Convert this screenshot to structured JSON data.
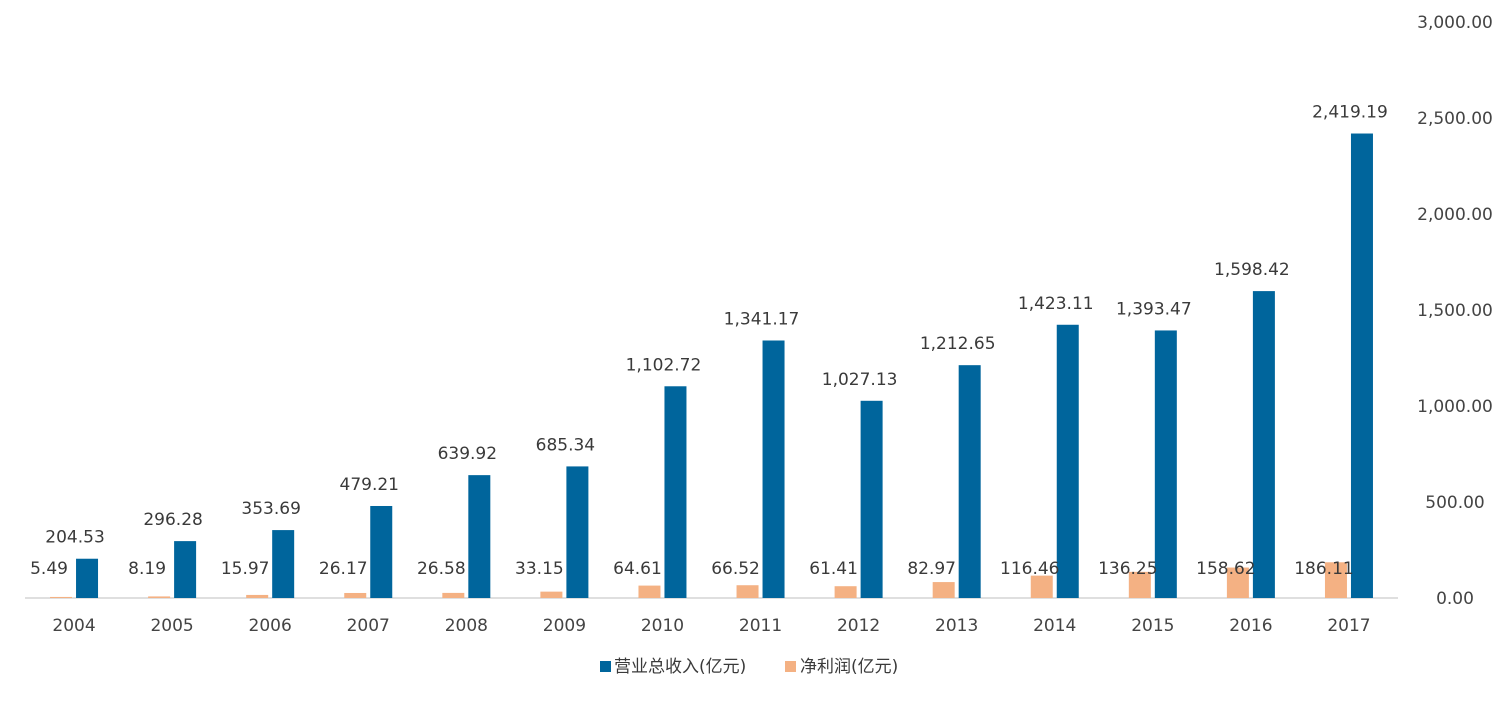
{
  "chart_data": {
    "type": "bar",
    "categories": [
      "2004",
      "2005",
      "2006",
      "2007",
      "2008",
      "2009",
      "2010",
      "2011",
      "2012",
      "2013",
      "2014",
      "2015",
      "2016",
      "2017"
    ],
    "series": [
      {
        "name": "营业总收入(亿元)",
        "color": "#00659c",
        "values": [
          204.53,
          296.28,
          353.69,
          479.21,
          639.92,
          685.34,
          1102.72,
          1341.17,
          1027.13,
          1212.65,
          1423.11,
          1393.47,
          1598.42,
          2419.19
        ],
        "labels": [
          "204.53",
          "296.28",
          "353.69",
          "479.21",
          "639.92",
          "685.34",
          "1,102.72",
          "1,341.17",
          "1,027.13",
          "1,212.65",
          "1,423.11",
          "1,393.47",
          "1,598.42",
          "2,419.19"
        ]
      },
      {
        "name": "净利润(亿元)",
        "color": "#f4b183",
        "values": [
          5.49,
          8.19,
          15.97,
          26.17,
          26.58,
          33.15,
          64.61,
          66.52,
          61.41,
          82.97,
          116.46,
          136.25,
          158.62,
          186.11
        ],
        "labels": [
          "5.49",
          "8.19",
          "15.97",
          "26.17",
          "26.58",
          "33.15",
          "64.61",
          "66.52",
          "61.41",
          "82.97",
          "116.46",
          "136.25",
          "158.62",
          "186.11"
        ]
      }
    ],
    "y_axis": {
      "position": "right",
      "ylim": [
        0,
        3000
      ],
      "ticks": [
        0,
        500,
        1000,
        1500,
        2000,
        2500,
        3000
      ],
      "tick_labels": [
        "0.00",
        "500.00",
        "1,000.00",
        "1,500.00",
        "2,000.00",
        "2,500.00",
        "3,000.00"
      ]
    },
    "grid": false,
    "legend": {
      "placement": "bottom-center"
    },
    "title": "",
    "xlabel": "",
    "ylabel": ""
  }
}
